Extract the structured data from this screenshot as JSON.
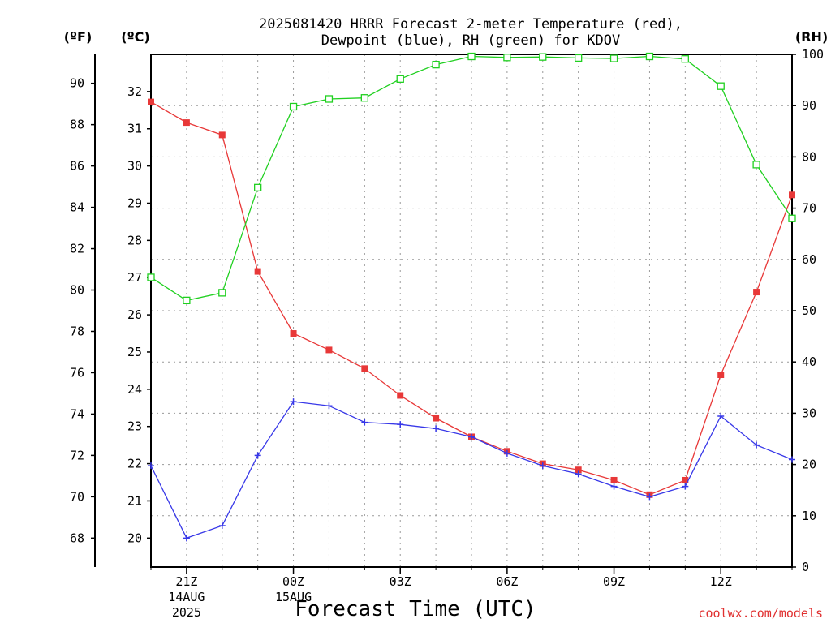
{
  "title_line1": "2025081420 HRRR Forecast 2-meter Temperature (red),",
  "title_line2": "Dewpoint (blue), RH (green) for KDOV",
  "xlabel": "Forecast Time (UTC)",
  "credit": "coolwx.com/models",
  "unit_f": "(ºF)",
  "unit_c": "(ºC)",
  "unit_rh": "(RH)",
  "colors": {
    "temperature": "#e83838",
    "dewpoint": "#3838e8",
    "rh": "#20d020"
  },
  "chart_data": {
    "type": "line",
    "title": "2025081420 HRRR Forecast 2-meter Temperature (red), Dewpoint (blue), RH (green) for KDOV",
    "xlabel": "Forecast Time (UTC)",
    "x": [
      "20Z",
      "21Z",
      "22Z",
      "23Z",
      "00Z",
      "01Z",
      "02Z",
      "03Z",
      "04Z",
      "05Z",
      "06Z",
      "07Z",
      "08Z",
      "09Z",
      "10Z",
      "11Z",
      "12Z",
      "13Z",
      "14Z"
    ],
    "x_ticks": [
      {
        "index": 1,
        "label": "21Z",
        "sub1": "14AUG",
        "sub2": "2025"
      },
      {
        "index": 4,
        "label": "00Z",
        "sub1": "15AUG",
        "sub2": ""
      },
      {
        "index": 7,
        "label": "03Z",
        "sub1": "",
        "sub2": ""
      },
      {
        "index": 10,
        "label": "06Z",
        "sub1": "",
        "sub2": ""
      },
      {
        "index": 13,
        "label": "09Z",
        "sub1": "",
        "sub2": ""
      },
      {
        "index": 16,
        "label": "12Z",
        "sub1": "",
        "sub2": ""
      }
    ],
    "y_left_f": {
      "ticks": [
        "68",
        "70",
        "72",
        "74",
        "76",
        "78",
        "80",
        "82",
        "84",
        "86",
        "88",
        "90"
      ]
    },
    "y_left_c": {
      "ticks": [
        "20",
        "21",
        "22",
        "23",
        "24",
        "25",
        "26",
        "27",
        "28",
        "29",
        "30",
        "31",
        "32"
      ]
    },
    "y_right_rh": {
      "ticks": [
        "0",
        "10",
        "20",
        "30",
        "40",
        "50",
        "60",
        "70",
        "80",
        "90",
        "100"
      ],
      "lim": [
        0,
        100
      ]
    },
    "ylim_f": [
      66.6,
      91.4
    ],
    "series": [
      {
        "name": "Temperature (red)",
        "unit": "F",
        "axis": "left",
        "marker": "filled-square",
        "values": [
          89.1,
          88.1,
          87.5,
          80.9,
          77.9,
          77.1,
          76.2,
          74.9,
          73.8,
          72.9,
          72.2,
          71.6,
          71.3,
          70.8,
          70.1,
          70.8,
          75.9,
          79.9,
          84.6
        ]
      },
      {
        "name": "Dewpoint (blue)",
        "unit": "F",
        "axis": "left",
        "marker": "plus",
        "values": [
          71.5,
          68.0,
          68.6,
          72.0,
          74.6,
          74.4,
          73.6,
          73.5,
          73.3,
          72.9,
          72.1,
          71.5,
          71.1,
          70.5,
          70.0,
          70.5,
          73.9,
          72.5,
          71.8
        ]
      },
      {
        "name": "RH (green)",
        "unit": "%",
        "axis": "right",
        "marker": "open-square",
        "values": [
          56.5,
          52.0,
          53.5,
          74.0,
          89.8,
          91.3,
          91.5,
          95.2,
          98.0,
          99.6,
          99.4,
          99.5,
          99.3,
          99.2,
          99.6,
          99.1,
          93.8,
          78.5,
          68.0
        ]
      }
    ],
    "grid": true
  }
}
